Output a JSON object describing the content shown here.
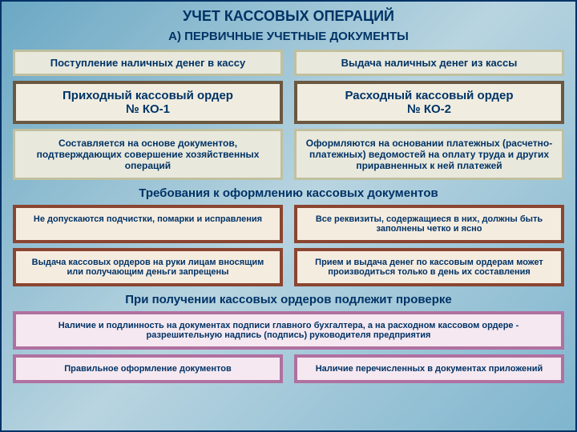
{
  "slide": {
    "background": "linear-gradient(135deg,#6ba8c4 0%,#b8d4e0 50%,#7fb5ce 100%)",
    "border": "2px solid #003366",
    "title": {
      "text": "УЧЕТ КАССОВЫХ ОПЕРАЦИЙ",
      "fontsize": 18
    },
    "subtitle": {
      "text": "А)   ПЕРВИЧНЫЕ УЧЕТНЫЕ ДОКУМЕНТЫ",
      "fontsize": 15
    }
  },
  "top_row": {
    "left": {
      "text": "Поступление наличных денег в кассу",
      "bg": "#e8e8dc",
      "border": "3px solid #c0c0a0",
      "fontsize": 13
    },
    "right": {
      "text": "Выдача наличных денег из кассы",
      "bg": "#e8e8dc",
      "border": "3px solid #c0c0a0",
      "fontsize": 13
    }
  },
  "order_row": {
    "left": {
      "line1": "Приходный кассовый ордер",
      "line2": "№ КО-1",
      "bg": "#f0ede0",
      "border": "4px solid #6b5840",
      "fontsize": 15
    },
    "right": {
      "line1": "Расходный кассовый ордер",
      "line2": "№ КО-2",
      "bg": "#f0ede0",
      "border": "4px solid #6b5840",
      "fontsize": 15
    }
  },
  "desc_row": {
    "left": {
      "text": "Составляется на основе документов, подтверждающих совершение хозяйственных операций",
      "bg": "#e8e8dc",
      "border": "3px solid #c0c0a0",
      "fontsize": 12
    },
    "right": {
      "text": "Оформляются на основании платежных (расчетно-платежных) ведомостей на оплату труда и других приравненных к ней платежей",
      "bg": "#e8e8dc",
      "border": "3px solid #c0c0a0",
      "fontsize": 12
    }
  },
  "req_title": {
    "text": "Требования к оформлению кассовых документов",
    "fontsize": 15
  },
  "req_row1": {
    "left": {
      "text": "Не допускаются подчистки, помарки и исправления",
      "bg": "#f5ece0",
      "border": "4px solid #8b4530",
      "fontsize": 11
    },
    "right": {
      "text": "Все реквизиты, содержащиеся в них, должны быть заполнены четко и ясно",
      "bg": "#f5ece0",
      "border": "4px solid #8b4530",
      "fontsize": 11
    }
  },
  "req_row2": {
    "left": {
      "text": "Выдача кассовых ордеров на руки лицам вносящим или получающим деньги запрещены",
      "bg": "#f5ece0",
      "border": "4px solid #8b4530",
      "fontsize": 11
    },
    "right": {
      "text": "Прием и выдача денег по кассовым ордерам может производиться только в день их составления",
      "bg": "#f5ece0",
      "border": "4px solid #8b4530",
      "fontsize": 11
    }
  },
  "check_title": {
    "text": "При получении кассовых ордеров подлежит проверке",
    "fontsize": 15
  },
  "check_wide": {
    "text": "Наличие и подлинность на документах подписи главного бухгалтера, а на расходном кассовом ордере - разрешительную надпись (подпись) руководителя предприятия",
    "bg": "#f5e8f0",
    "border": "4px solid #b070a0",
    "fontsize": 11
  },
  "check_row": {
    "left": {
      "text": "Правильное оформление документов",
      "bg": "#f5e8f0",
      "border": "4px solid #b070a0",
      "fontsize": 11
    },
    "right": {
      "text": "Наличие перечисленных в документах приложений",
      "bg": "#f5e8f0",
      "border": "4px solid #b070a0",
      "fontsize": 11
    }
  }
}
